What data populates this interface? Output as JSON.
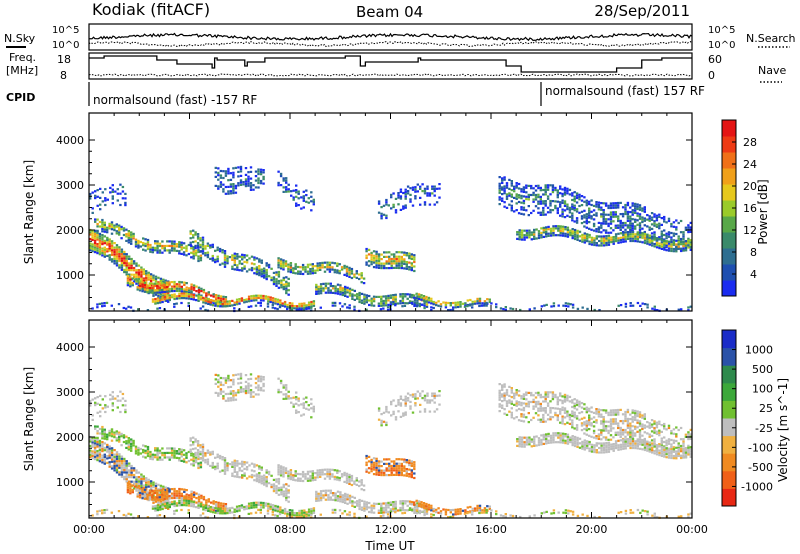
{
  "header": {
    "station": "Kodiak (fitACF)",
    "beam": "Beam 04",
    "date": "28/Sep/2011"
  },
  "status_panel": {
    "nsky_label": "N.Sky",
    "nsky_tick_top": "10^5",
    "nsky_tick_bottom": "10^0",
    "nsky_right_tick_top": "10^5",
    "nsky_right_tick_bottom": "10^0",
    "nsearch_label": "N.Search",
    "freq_label_1": "Freq.",
    "freq_label_2": "[MHz]",
    "freq_tick_top": "18",
    "freq_tick_bottom": "8",
    "nave_tick_top": "60",
    "nave_tick_bottom": "0",
    "nave_label": "Nave",
    "cpid_label": "CPID",
    "cpid_1": "normalsound (fast) -157 RF",
    "cpid_2": "normalsound (fast) 157 RF"
  },
  "chart_data": [
    {
      "type": "heatmap",
      "panel": "power",
      "ylabel": "Slant Range [km]",
      "xlabel": "",
      "x_ticks": [
        "00:00",
        "04:00",
        "08:00",
        "12:00",
        "16:00",
        "20:00",
        "00:00"
      ],
      "y_ticks": [
        1000,
        2000,
        3000,
        4000
      ],
      "xlim_hours": [
        0,
        24
      ],
      "ylim_km": [
        200,
        4600
      ],
      "colorbar": {
        "label": "Power [dB]",
        "ticks": [
          "4",
          "8",
          "12",
          "16",
          "20",
          "24",
          "28"
        ],
        "colors": [
          "#1a2cf0",
          "#1e4fb0",
          "#2e6e90",
          "#3a8a6a",
          "#58a848",
          "#9acb2a",
          "#e6c81c",
          "#f0a01a",
          "#f07018",
          "#ee3a14",
          "#e41414"
        ]
      }
    },
    {
      "type": "heatmap",
      "panel": "velocity",
      "ylabel": "Slant Range [km]",
      "xlabel": "Time UT",
      "x_ticks": [
        "00:00",
        "04:00",
        "08:00",
        "12:00",
        "16:00",
        "20:00",
        "00:00"
      ],
      "y_ticks": [
        1000,
        2000,
        3000,
        4000
      ],
      "xlim_hours": [
        0,
        24
      ],
      "ylim_km": [
        200,
        4600
      ],
      "colorbar": {
        "label": "Velocity [m s^-1]",
        "ticks": [
          "1000",
          "500",
          "100",
          "25",
          "-25",
          "-100",
          "-500",
          "-1000"
        ],
        "colors": [
          "#1a2cc8",
          "#2a52a8",
          "#2e8a4c",
          "#3ca83a",
          "#70c030",
          "#bebebe",
          "#f0b040",
          "#f08a20",
          "#f06018",
          "#e82814"
        ]
      }
    }
  ]
}
